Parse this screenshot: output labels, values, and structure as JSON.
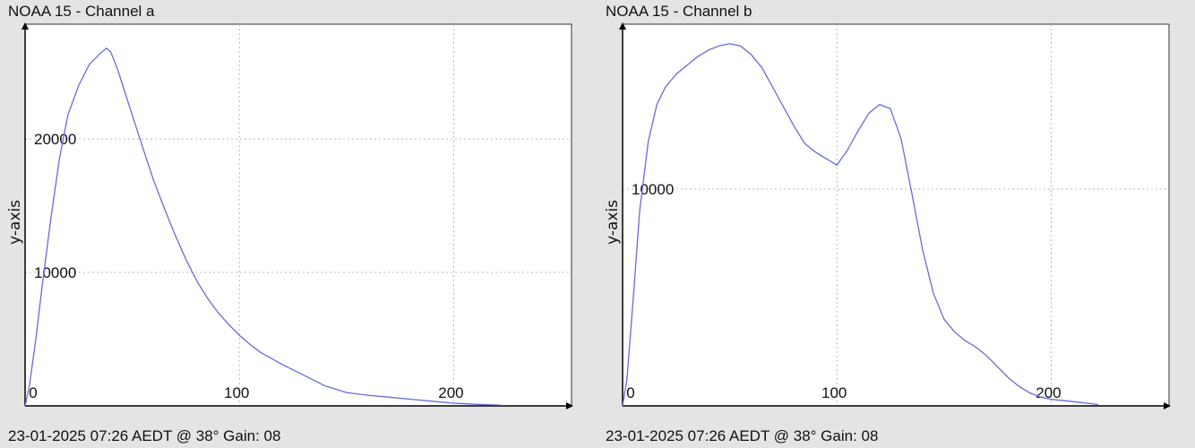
{
  "panels": [
    {
      "title": "NOAA 15 - Channel a",
      "footer": "23-01-2025 07:26 AEDT @ 38° Gain: 08",
      "chart_data": {
        "type": "line",
        "title": "NOAA 15 - Channel a",
        "xlabel": "",
        "ylabel": "y-axis",
        "xlim": [
          0,
          255
        ],
        "ylim": [
          0,
          28600
        ],
        "xticks": [
          0,
          100,
          200
        ],
        "yticks": [
          10000,
          20000
        ],
        "grid": true,
        "line_color": "#6a6ad8",
        "series": [
          {
            "x": [
              0,
              2,
              5,
              8,
              12,
              16,
              20,
              25,
              30,
              35,
              38,
              40,
              43,
              46,
              50,
              55,
              60,
              65,
              70,
              75,
              80,
              85,
              90,
              95,
              100,
              105,
              110,
              120,
              130,
              140,
              150,
              160,
              170,
              180,
              190,
              200,
              210,
              222
            ],
            "y": [
              0,
              1500,
              5000,
              9000,
              14000,
              18500,
              21800,
              24000,
              25600,
              26400,
              26800,
              26500,
              25300,
              23800,
              21800,
              19300,
              16900,
              14800,
              12800,
              11000,
              9400,
              8100,
              7000,
              6100,
              5300,
              4600,
              4000,
              3100,
              2300,
              1500,
              1000,
              800,
              650,
              500,
              350,
              200,
              120,
              60
            ]
          }
        ]
      }
    },
    {
      "title": "NOAA 15 - Channel b",
      "footer": "23-01-2025 07:26 AEDT @ 38° Gain: 08",
      "chart_data": {
        "type": "line",
        "title": "NOAA 15 - Channel b",
        "xlabel": "",
        "ylabel": "y-axis",
        "xlim": [
          0,
          255
        ],
        "ylim": [
          0,
          17600
        ],
        "xticks": [
          0,
          100,
          200
        ],
        "yticks": [
          10000
        ],
        "grid": true,
        "line_color": "#6a6ad8",
        "series": [
          {
            "x": [
              0,
              2,
              5,
              8,
              12,
              16,
              20,
              25,
              30,
              35,
              40,
              45,
              50,
              55,
              60,
              65,
              70,
              75,
              80,
              85,
              90,
              95,
              100,
              105,
              110,
              115,
              120,
              125,
              130,
              135,
              140,
              145,
              150,
              155,
              160,
              165,
              170,
              175,
              180,
              185,
              190,
              195,
              200,
              210,
              222
            ],
            "y": [
              0,
              1200,
              5000,
              9000,
              12200,
              13900,
              14700,
              15300,
              15700,
              16100,
              16400,
              16600,
              16700,
              16600,
              16200,
              15600,
              14700,
              13800,
              12900,
              12100,
              11700,
              11400,
              11100,
              11800,
              12700,
              13500,
              13900,
              13700,
              12300,
              9800,
              7200,
              5200,
              4000,
              3400,
              3000,
              2700,
              2300,
              1800,
              1300,
              900,
              600,
              400,
              300,
              200,
              60
            ]
          }
        ]
      }
    }
  ]
}
